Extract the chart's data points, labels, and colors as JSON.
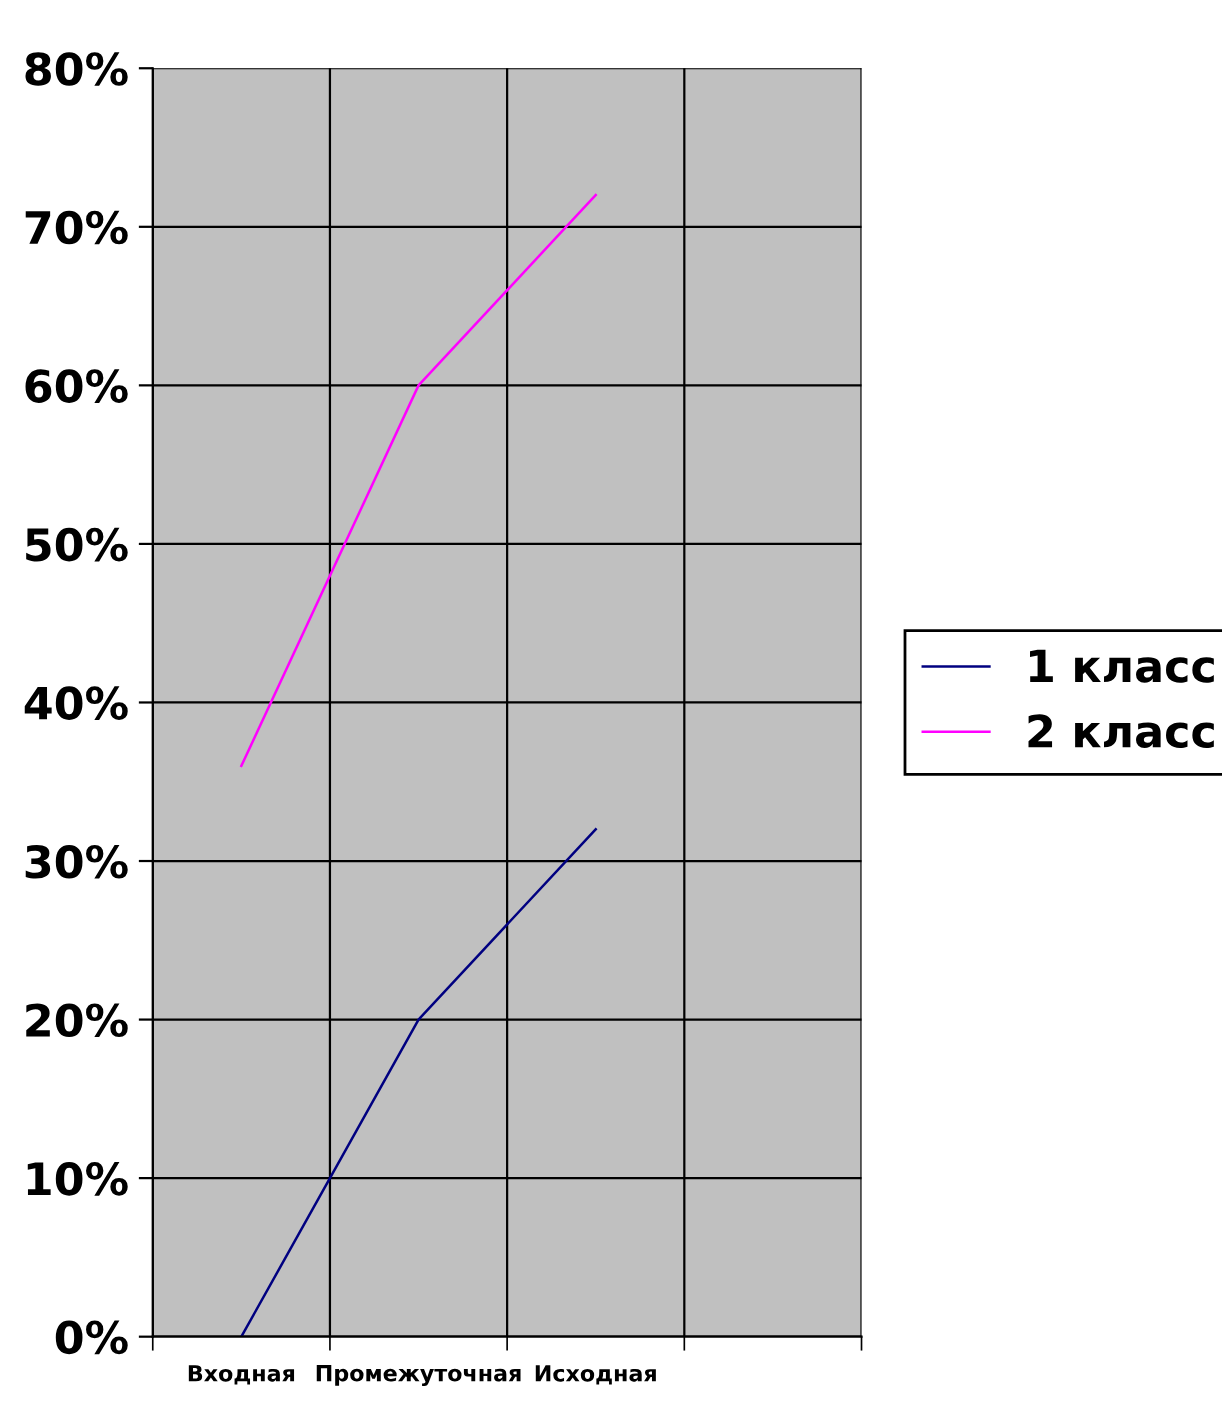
{
  "chart_data": {
    "type": "line",
    "categories": [
      "Входная",
      "Промежуточная",
      "Исходная",
      null
    ],
    "series": [
      {
        "name": "1 класс",
        "color": "#000080",
        "values": [
          0,
          20,
          32,
          null
        ]
      },
      {
        "name": "2 класс",
        "color": "#ff00ff",
        "values": [
          36,
          60,
          72,
          null
        ]
      }
    ],
    "ylim": [
      0,
      80
    ],
    "yticks": [
      {
        "value": 0,
        "label": "0%"
      },
      {
        "value": 10,
        "label": "10%"
      },
      {
        "value": 20,
        "label": "20%"
      },
      {
        "value": 30,
        "label": "30%"
      },
      {
        "value": 40,
        "label": "40%"
      },
      {
        "value": 50,
        "label": "50%"
      },
      {
        "value": 60,
        "label": "60%"
      },
      {
        "value": 70,
        "label": "70%"
      },
      {
        "value": 80,
        "label": "80%"
      }
    ],
    "grid": true,
    "legend": "right",
    "marker": "none",
    "line_style": "solid"
  }
}
